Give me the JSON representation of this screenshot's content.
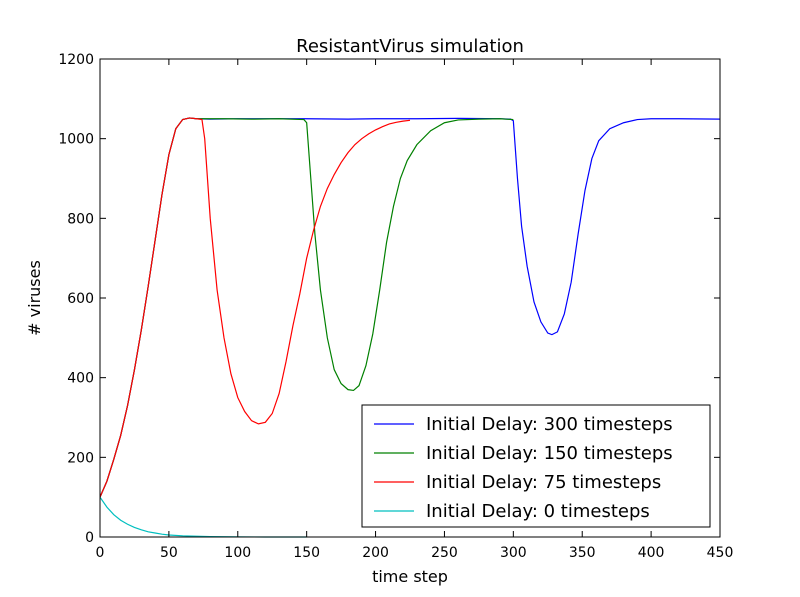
{
  "chart_data": {
    "type": "line",
    "title": "ResistantVirus simulation",
    "xlabel": "time step",
    "ylabel": "# viruses",
    "xlim": [
      0,
      450
    ],
    "ylim": [
      0,
      1200
    ],
    "xticks": [
      0,
      50,
      100,
      150,
      200,
      250,
      300,
      350,
      400,
      450
    ],
    "yticks": [
      0,
      200,
      400,
      600,
      800,
      1000,
      1200
    ],
    "grid": false,
    "legend_position": "lower-right",
    "series": [
      {
        "name": "Initial Delay: 300 timesteps",
        "color": "#0000ff",
        "points": [
          [
            0,
            100
          ],
          [
            5,
            140
          ],
          [
            10,
            195
          ],
          [
            15,
            255
          ],
          [
            20,
            330
          ],
          [
            25,
            420
          ],
          [
            30,
            520
          ],
          [
            35,
            630
          ],
          [
            40,
            745
          ],
          [
            45,
            860
          ],
          [
            50,
            960
          ],
          [
            55,
            1025
          ],
          [
            60,
            1048
          ],
          [
            65,
            1052
          ],
          [
            70,
            1050
          ],
          [
            80,
            1049
          ],
          [
            100,
            1050
          ],
          [
            120,
            1050
          ],
          [
            150,
            1050
          ],
          [
            180,
            1049
          ],
          [
            200,
            1050
          ],
          [
            230,
            1050
          ],
          [
            260,
            1051
          ],
          [
            290,
            1050
          ],
          [
            298,
            1049
          ],
          [
            300,
            1045
          ],
          [
            303,
            900
          ],
          [
            306,
            780
          ],
          [
            310,
            680
          ],
          [
            315,
            590
          ],
          [
            320,
            540
          ],
          [
            325,
            512
          ],
          [
            328,
            508
          ],
          [
            332,
            515
          ],
          [
            337,
            560
          ],
          [
            342,
            640
          ],
          [
            347,
            760
          ],
          [
            352,
            870
          ],
          [
            357,
            950
          ],
          [
            362,
            995
          ],
          [
            370,
            1025
          ],
          [
            380,
            1040
          ],
          [
            390,
            1048
          ],
          [
            400,
            1050
          ],
          [
            420,
            1050
          ],
          [
            450,
            1049
          ]
        ]
      },
      {
        "name": "Initial Delay: 150 timesteps",
        "color": "#008000",
        "points": [
          [
            0,
            100
          ],
          [
            5,
            140
          ],
          [
            10,
            195
          ],
          [
            15,
            255
          ],
          [
            20,
            330
          ],
          [
            25,
            420
          ],
          [
            30,
            520
          ],
          [
            35,
            630
          ],
          [
            40,
            745
          ],
          [
            45,
            860
          ],
          [
            50,
            960
          ],
          [
            55,
            1025
          ],
          [
            60,
            1048
          ],
          [
            65,
            1052
          ],
          [
            70,
            1050
          ],
          [
            90,
            1050
          ],
          [
            110,
            1049
          ],
          [
            130,
            1050
          ],
          [
            148,
            1048
          ],
          [
            150,
            1040
          ],
          [
            153,
            900
          ],
          [
            156,
            760
          ],
          [
            160,
            620
          ],
          [
            165,
            500
          ],
          [
            170,
            420
          ],
          [
            175,
            385
          ],
          [
            180,
            370
          ],
          [
            184,
            368
          ],
          [
            188,
            380
          ],
          [
            193,
            430
          ],
          [
            198,
            510
          ],
          [
            203,
            620
          ],
          [
            208,
            740
          ],
          [
            213,
            830
          ],
          [
            218,
            900
          ],
          [
            223,
            945
          ],
          [
            230,
            985
          ],
          [
            240,
            1020
          ],
          [
            250,
            1040
          ],
          [
            260,
            1047
          ],
          [
            275,
            1049
          ],
          [
            290,
            1050
          ],
          [
            300,
            1048
          ]
        ]
      },
      {
        "name": "Initial Delay: 75 timesteps",
        "color": "#ff0000",
        "points": [
          [
            0,
            100
          ],
          [
            5,
            140
          ],
          [
            10,
            195
          ],
          [
            15,
            255
          ],
          [
            20,
            330
          ],
          [
            25,
            420
          ],
          [
            30,
            520
          ],
          [
            35,
            630
          ],
          [
            40,
            745
          ],
          [
            45,
            860
          ],
          [
            50,
            960
          ],
          [
            55,
            1025
          ],
          [
            60,
            1048
          ],
          [
            65,
            1052
          ],
          [
            70,
            1050
          ],
          [
            74,
            1048
          ],
          [
            76,
            1000
          ],
          [
            80,
            800
          ],
          [
            85,
            620
          ],
          [
            90,
            500
          ],
          [
            95,
            410
          ],
          [
            100,
            350
          ],
          [
            105,
            315
          ],
          [
            110,
            292
          ],
          [
            115,
            284
          ],
          [
            120,
            288
          ],
          [
            125,
            310
          ],
          [
            130,
            360
          ],
          [
            135,
            440
          ],
          [
            140,
            530
          ],
          [
            145,
            610
          ],
          [
            150,
            700
          ],
          [
            155,
            770
          ],
          [
            160,
            830
          ],
          [
            165,
            875
          ],
          [
            170,
            910
          ],
          [
            175,
            940
          ],
          [
            180,
            965
          ],
          [
            185,
            985
          ],
          [
            190,
            1000
          ],
          [
            195,
            1012
          ],
          [
            200,
            1022
          ],
          [
            205,
            1030
          ],
          [
            210,
            1037
          ],
          [
            215,
            1041
          ],
          [
            220,
            1044
          ],
          [
            225,
            1046
          ]
        ]
      },
      {
        "name": "Initial Delay: 0 timesteps",
        "color": "#00bfbf",
        "points": [
          [
            0,
            100
          ],
          [
            5,
            75
          ],
          [
            10,
            56
          ],
          [
            15,
            42
          ],
          [
            20,
            32
          ],
          [
            25,
            24
          ],
          [
            30,
            18
          ],
          [
            35,
            13
          ],
          [
            40,
            10
          ],
          [
            45,
            7
          ],
          [
            50,
            5
          ],
          [
            60,
            3
          ],
          [
            70,
            2
          ],
          [
            80,
            1
          ],
          [
            100,
            0.5
          ],
          [
            120,
            0
          ],
          [
            150,
            0
          ]
        ]
      }
    ]
  }
}
